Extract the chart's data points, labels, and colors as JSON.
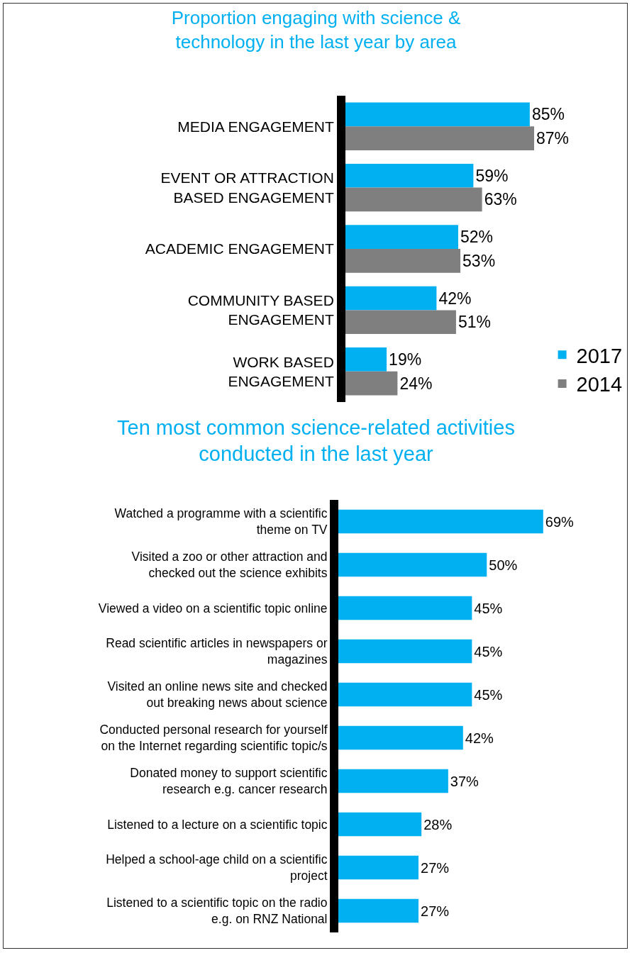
{
  "chart_data": [
    {
      "type": "bar",
      "orientation": "horizontal",
      "title": "Proportion engaging with science &\ntechnology in the last year by area",
      "categories": [
        "MEDIA ENGAGEMENT",
        "EVENT OR ATTRACTION\nBASED ENGAGEMENT",
        "ACADEMIC ENGAGEMENT",
        "COMMUNITY BASED\nENGAGEMENT",
        "WORK BASED\nENGAGEMENT"
      ],
      "series": [
        {
          "name": "2017",
          "color": "#00b0f0",
          "values": [
            85,
            59,
            52,
            42,
            19
          ],
          "value_labels": [
            "85%",
            "59%",
            "52%",
            "42%",
            "19%"
          ]
        },
        {
          "name": "2014",
          "color": "#7f7f7f",
          "values": [
            87,
            63,
            53,
            51,
            24
          ],
          "value_labels": [
            "87%",
            "63%",
            "53%",
            "51%",
            "24%"
          ]
        }
      ],
      "legend": "bottom right",
      "grid": false
    },
    {
      "type": "bar",
      "orientation": "horizontal",
      "title": "Ten most common science-related activities\nconducted in the last year",
      "categories": [
        "Watched a programme with a scientific\ntheme on TV",
        "Visited a zoo or other attraction and\nchecked out the science exhibits",
        "Viewed a video on a scientific topic online",
        "Read scientific articles in newspapers or\nmagazines",
        "Visited an online news site and checked\nout breaking news about science",
        "Conducted personal research for yourself\non the Internet regarding scientific topic/s",
        "Donated money to support scientific\nresearch e.g. cancer research",
        "Listened to a lecture on a scientific topic",
        "Helped a school-age child on a scientific\nproject",
        "Listened to a scientific topic on the radio\ne.g. on RNZ National"
      ],
      "series": [
        {
          "color": "#00b0f0",
          "values": [
            69,
            50,
            45,
            45,
            45,
            42,
            37,
            28,
            27,
            27
          ],
          "value_labels": [
            "69%",
            "50%",
            "45%",
            "45%",
            "45%",
            "42%",
            "37%",
            "28%",
            "27%",
            "27%"
          ]
        }
      ],
      "legend": false,
      "grid": false
    }
  ]
}
